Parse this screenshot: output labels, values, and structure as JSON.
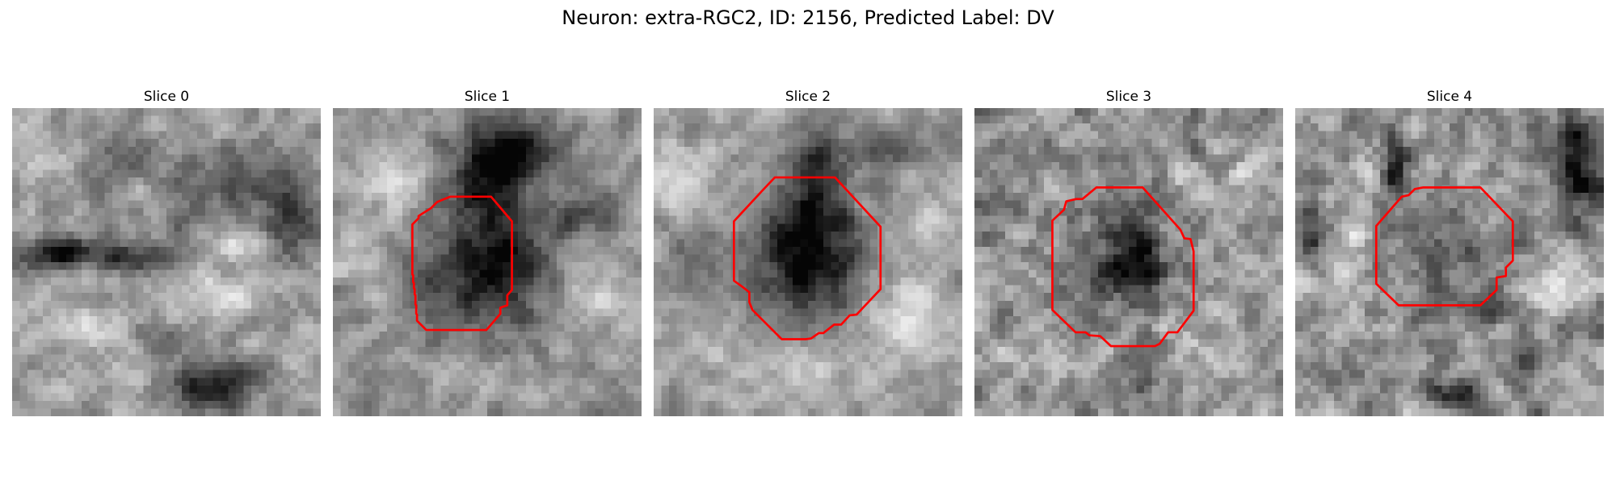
{
  "figure": {
    "title": "Neuron: extra-RGC2, ID: 2156, Predicted Label: DV"
  },
  "panels": [
    {
      "title": "Slice 0",
      "has_outline": false
    },
    {
      "title": "Slice 1",
      "has_outline": true
    },
    {
      "title": "Slice 2",
      "has_outline": true
    },
    {
      "title": "Slice 3",
      "has_outline": true
    },
    {
      "title": "Slice 4",
      "has_outline": true
    }
  ],
  "colors": {
    "outline": "#ff0000",
    "background": "#ffffff",
    "text": "#000000"
  }
}
